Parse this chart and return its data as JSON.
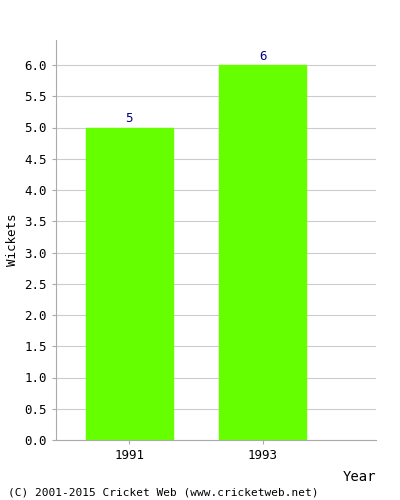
{
  "categories": [
    "1991",
    "1993"
  ],
  "values": [
    5,
    6
  ],
  "bar_color": "#66ff00",
  "bar_width": 0.65,
  "xlabel": "Year",
  "ylabel": "Wickets",
  "ylim": [
    0.0,
    6.4
  ],
  "yticks": [
    0.0,
    0.5,
    1.0,
    1.5,
    2.0,
    2.5,
    3.0,
    3.5,
    4.0,
    4.5,
    5.0,
    5.5,
    6.0
  ],
  "annotation_color": "#000080",
  "annotation_fontsize": 9,
  "xlabel_fontsize": 10,
  "ylabel_fontsize": 9,
  "tick_fontsize": 9,
  "footer_text": "(C) 2001-2015 Cricket Web (www.cricketweb.net)",
  "footer_fontsize": 8,
  "background_color": "#ffffff",
  "grid_color": "#cccccc",
  "spine_color": "#aaaaaa"
}
